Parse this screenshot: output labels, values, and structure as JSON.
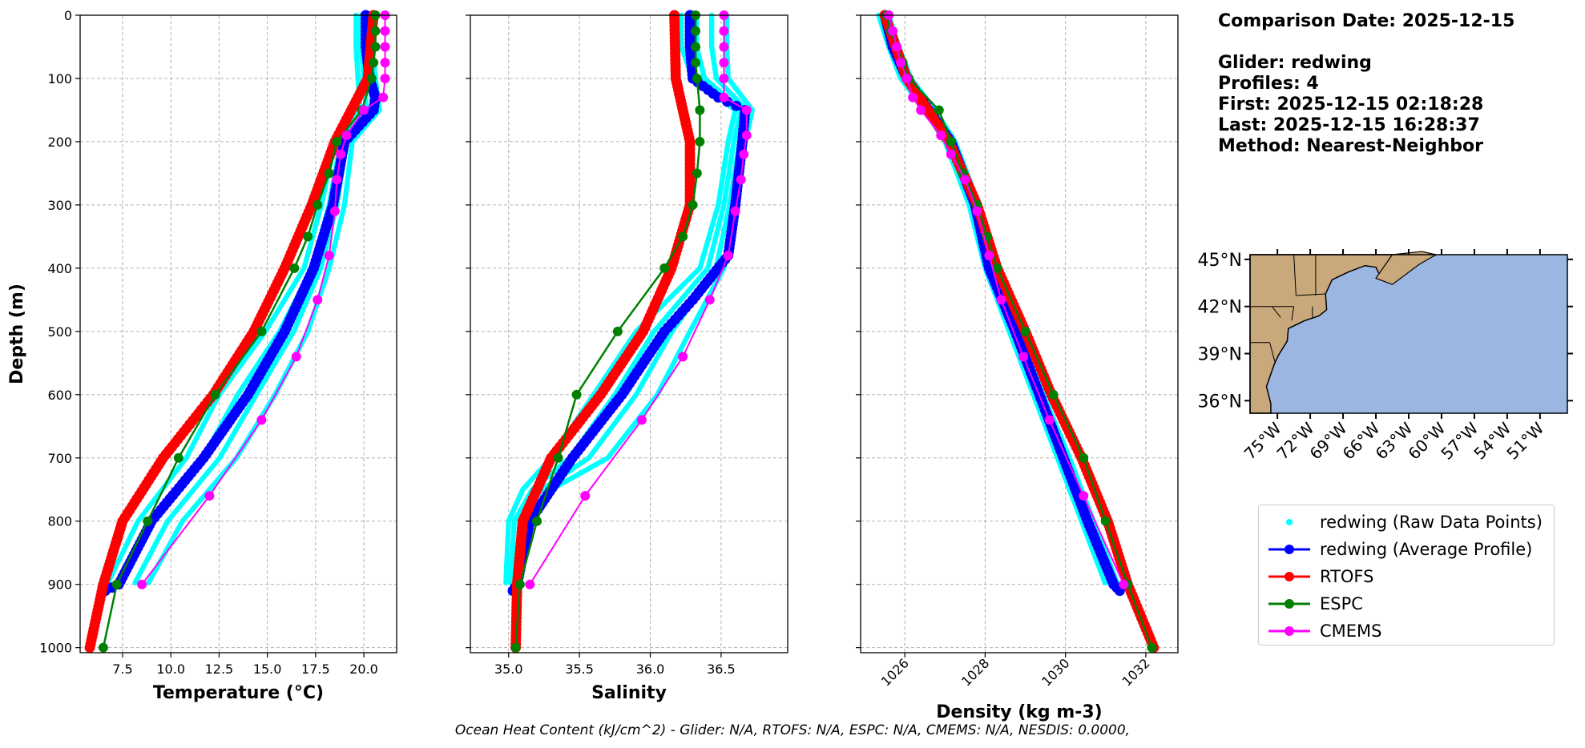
{
  "info": {
    "comparison_date": "Comparison Date: 2025-12-15",
    "glider": "Glider: redwing",
    "profiles": "Profiles: 4",
    "first": "First: 2025-12-15 02:18:28",
    "last": "Last: 2025-12-15 16:28:37",
    "method": "Method: Nearest-Neighbor"
  },
  "legend": [
    {
      "label": "redwing (Raw Data Points)",
      "color": "#00ffff",
      "style": "dots"
    },
    {
      "label": "redwing (Average Profile)",
      "color": "#0000ff",
      "style": "line-marker"
    },
    {
      "label": "RTOFS",
      "color": "#ff0000",
      "style": "line-marker"
    },
    {
      "label": "ESPC",
      "color": "#008000",
      "style": "line-marker"
    },
    {
      "label": "CMEMS",
      "color": "#ff00ff",
      "style": "line-marker"
    }
  ],
  "footer": "Ocean Heat Content (kJ/cm^2) - Glider: N/A,  RTOFS: N/A,  ESPC: N/A,  CMEMS: N/A,  NESDIS: 0.0000,",
  "colors": {
    "glider_raw": "#00ffff",
    "glider_avg": "#0000ff",
    "rtofs": "#ff0000",
    "espc": "#008000",
    "cmems": "#ff00ff",
    "ocean": "#9bb6e0",
    "land": "#c9a87b"
  },
  "chart_data": [
    {
      "type": "line",
      "xlabel": "Temperature (°C)",
      "ylabel": "Depth (m)",
      "xlim": [
        5.3,
        21.7
      ],
      "ylim": [
        1008,
        0
      ],
      "xticks": [
        7.5,
        10.0,
        12.5,
        15.0,
        17.5,
        20.0
      ],
      "xtick_labels": [
        "7.5",
        "10.0",
        "12.5",
        "15.0",
        "17.5",
        "20.0"
      ],
      "yticks": [
        0,
        100,
        200,
        300,
        400,
        500,
        600,
        700,
        800,
        900,
        1000
      ],
      "grid": true,
      "series": [
        {
          "name": "redwing (Raw Data Points)",
          "y": [
            0,
            50,
            100,
            150,
            200,
            300,
            400,
            500,
            600,
            700,
            800,
            900
          ],
          "x_range": [
            [
              19.6,
              20.4
            ],
            [
              19.6,
              20.4
            ],
            [
              19.7,
              20.6
            ],
            [
              19.8,
              20.8
            ],
            [
              18.5,
              19.4
            ],
            [
              17.8,
              19.0
            ],
            [
              16.9,
              18.2
            ],
            [
              14.9,
              17.1
            ],
            [
              12.5,
              15.4
            ],
            [
              10.8,
              13.4
            ],
            [
              8.3,
              10.6
            ],
            [
              6.7,
              8.8
            ]
          ]
        },
        {
          "name": "redwing (Average Profile)",
          "y": [
            0,
            50,
            100,
            130,
            150,
            200,
            300,
            400,
            500,
            600,
            700,
            800,
            900,
            910
          ],
          "x": [
            20.1,
            20.1,
            20.3,
            20.6,
            20.5,
            19.0,
            18.4,
            17.4,
            15.9,
            14.0,
            11.7,
            9.0,
            7.3,
            6.6
          ]
        },
        {
          "name": "RTOFS",
          "y": [
            0,
            100,
            200,
            300,
            400,
            500,
            600,
            700,
            800,
            900,
            1000
          ],
          "x": [
            20.5,
            20.2,
            18.5,
            17.3,
            15.9,
            14.3,
            12.2,
            9.6,
            7.5,
            6.5,
            5.8
          ]
        },
        {
          "name": "ESPC",
          "y": [
            0,
            25,
            50,
            75,
            100,
            150,
            200,
            250,
            300,
            350,
            400,
            500,
            600,
            700,
            800,
            900,
            1000
          ],
          "x": [
            20.6,
            20.6,
            20.6,
            20.5,
            20.4,
            19.9,
            18.6,
            18.2,
            17.6,
            17.1,
            16.4,
            14.7,
            12.3,
            10.4,
            8.8,
            7.2,
            6.5
          ]
        },
        {
          "name": "CMEMS",
          "y": [
            0,
            25,
            50,
            75,
            100,
            130,
            150,
            190,
            220,
            260,
            310,
            380,
            450,
            540,
            640,
            760,
            900
          ],
          "x": [
            21.1,
            21.1,
            21.1,
            21.1,
            21.1,
            21.0,
            20.0,
            19.1,
            18.8,
            18.6,
            18.5,
            18.2,
            17.6,
            16.5,
            14.7,
            12.0,
            8.5
          ]
        }
      ]
    },
    {
      "type": "line",
      "xlabel": "Salinity",
      "xlim": [
        34.73,
        36.97
      ],
      "ylim": [
        1008,
        0
      ],
      "xticks": [
        35.0,
        35.5,
        36.0,
        36.5
      ],
      "xtick_labels": [
        "35.0",
        "35.5",
        "36.0",
        "36.5"
      ],
      "grid": true,
      "series": [
        {
          "name": "redwing (Raw Data Points)",
          "y": [
            0,
            50,
            100,
            150,
            200,
            300,
            400,
            500,
            600,
            700,
            750,
            800,
            900
          ],
          "x_range": [
            [
              36.22,
              36.54
            ],
            [
              36.22,
              36.54
            ],
            [
              36.3,
              36.55
            ],
            [
              36.6,
              36.72
            ],
            [
              36.55,
              36.67
            ],
            [
              36.48,
              36.6
            ],
            [
              36.35,
              36.52
            ],
            [
              35.9,
              36.28
            ],
            [
              35.6,
              36.05
            ],
            [
              35.3,
              35.7
            ],
            [
              35.1,
              35.3
            ],
            [
              35.0,
              35.12
            ],
            [
              34.98,
              35.08
            ]
          ]
        },
        {
          "name": "redwing (Average Profile)",
          "y": [
            0,
            50,
            100,
            130,
            150,
            200,
            300,
            380,
            450,
            500,
            600,
            700,
            800,
            900,
            910
          ],
          "x": [
            36.28,
            36.28,
            36.3,
            36.48,
            36.67,
            36.65,
            36.6,
            36.55,
            36.3,
            36.1,
            35.8,
            35.45,
            35.15,
            35.06,
            35.03
          ]
        },
        {
          "name": "RTOFS",
          "y": [
            0,
            100,
            200,
            300,
            400,
            500,
            600,
            700,
            800,
            900,
            1000
          ],
          "x": [
            36.17,
            36.18,
            36.28,
            36.28,
            36.15,
            35.95,
            35.65,
            35.3,
            35.1,
            35.06,
            35.05
          ]
        },
        {
          "name": "ESPC",
          "y": [
            0,
            25,
            50,
            75,
            100,
            150,
            200,
            250,
            300,
            350,
            400,
            500,
            600,
            700,
            800,
            900,
            1000
          ],
          "x": [
            36.32,
            36.32,
            36.32,
            36.32,
            36.33,
            36.35,
            36.35,
            36.33,
            36.3,
            36.23,
            36.1,
            35.77,
            35.48,
            35.35,
            35.2,
            35.08,
            35.05
          ]
        },
        {
          "name": "CMEMS",
          "y": [
            0,
            25,
            50,
            75,
            100,
            130,
            150,
            190,
            220,
            260,
            310,
            380,
            450,
            540,
            640,
            760,
            900
          ],
          "x": [
            36.52,
            36.52,
            36.52,
            36.52,
            36.52,
            36.52,
            36.68,
            36.68,
            36.66,
            36.64,
            36.6,
            36.55,
            36.42,
            36.23,
            35.94,
            35.54,
            35.15
          ]
        }
      ]
    },
    {
      "type": "line",
      "xlabel": "Density (kg m-3)",
      "xlim": [
        1024.9,
        1032.8
      ],
      "ylim": [
        1008,
        0
      ],
      "xticks": [
        1026,
        1028,
        1030,
        1032
      ],
      "xtick_labels": [
        "1026",
        "1028",
        "1030",
        "1032"
      ],
      "grid": true,
      "series": [
        {
          "name": "redwing (Raw Data Points)",
          "y": [
            0,
            50,
            100,
            150,
            200,
            300,
            400,
            500,
            600,
            700,
            800,
            900
          ],
          "x_range": [
            [
              1025.35,
              1025.6
            ],
            [
              1025.6,
              1025.85
            ],
            [
              1025.9,
              1026.15
            ],
            [
              1026.5,
              1026.75
            ],
            [
              1027.0,
              1027.25
            ],
            [
              1027.6,
              1027.85
            ],
            [
              1028.0,
              1028.25
            ],
            [
              1028.6,
              1028.85
            ],
            [
              1029.2,
              1029.45
            ],
            [
              1029.8,
              1030.1
            ],
            [
              1030.4,
              1030.7
            ],
            [
              1031.0,
              1031.3
            ]
          ]
        },
        {
          "name": "redwing (Average Profile)",
          "y": [
            0,
            50,
            100,
            150,
            200,
            300,
            400,
            500,
            600,
            700,
            800,
            900,
            910
          ],
          "x": [
            1025.5,
            1025.7,
            1026.05,
            1026.6,
            1027.15,
            1027.75,
            1028.1,
            1028.75,
            1029.35,
            1029.95,
            1030.55,
            1031.2,
            1031.35
          ]
        },
        {
          "name": "RTOFS",
          "y": [
            0,
            100,
            200,
            300,
            400,
            500,
            600,
            700,
            800,
            900,
            1000
          ],
          "x": [
            1025.5,
            1026.05,
            1027.1,
            1027.8,
            1028.3,
            1029.0,
            1029.65,
            1030.4,
            1031.05,
            1031.55,
            1032.2
          ]
        },
        {
          "name": "ESPC",
          "y": [
            0,
            25,
            50,
            75,
            100,
            150,
            200,
            250,
            300,
            350,
            400,
            500,
            600,
            700,
            800,
            900,
            1000
          ],
          "x": [
            1025.55,
            1025.65,
            1025.8,
            1025.95,
            1026.1,
            1026.85,
            1027.15,
            1027.45,
            1027.8,
            1028.05,
            1028.3,
            1029.0,
            1029.7,
            1030.45,
            1031.0,
            1031.55,
            1032.15
          ]
        },
        {
          "name": "CMEMS",
          "y": [
            0,
            25,
            50,
            75,
            100,
            130,
            150,
            190,
            220,
            260,
            310,
            380,
            450,
            540,
            640,
            760,
            900
          ],
          "x": [
            1025.6,
            1025.7,
            1025.8,
            1025.9,
            1026.05,
            1026.2,
            1026.4,
            1026.9,
            1027.15,
            1027.5,
            1027.8,
            1028.1,
            1028.4,
            1028.95,
            1029.6,
            1030.45,
            1031.45
          ]
        }
      ]
    },
    {
      "type": "map",
      "lon_range": [
        -77.5,
        -48.5
      ],
      "lat_range": [
        35.2,
        45.3
      ],
      "xticks": [
        "75°W",
        "72°W",
        "69°W",
        "66°W",
        "63°W",
        "60°W",
        "57°W",
        "54°W",
        "51°W"
      ],
      "yticks": [
        "45°N",
        "42°N",
        "39°N",
        "36°N"
      ]
    }
  ]
}
